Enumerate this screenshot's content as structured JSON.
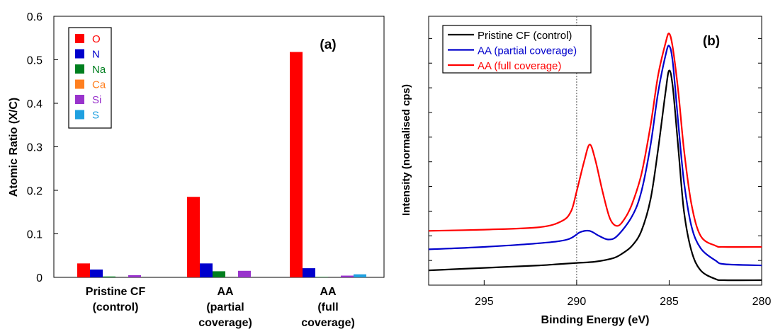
{
  "chart_data": [
    {
      "type": "bar",
      "panel_label": "(a)",
      "title": "",
      "xlabel": "",
      "ylabel": "Atomic Ratio (X/C)",
      "ylim": [
        0,
        0.6
      ],
      "yticks": [
        "0",
        "0.1",
        "0.2",
        "0.3",
        "0.4",
        "0.5",
        "0.6"
      ],
      "ytick_values": [
        0,
        0.1,
        0.2,
        0.3,
        0.4,
        0.5,
        0.6
      ],
      "grid": false,
      "legend_position": "top-left",
      "categories": [
        [
          "Pristine CF",
          "(control)"
        ],
        [
          "AA",
          "(partial",
          "coverage)"
        ],
        [
          "AA",
          "(full",
          "coverage)"
        ]
      ],
      "series": [
        {
          "name": "O",
          "color": "#ff0000",
          "values": [
            0.032,
            0.185,
            0.518
          ]
        },
        {
          "name": "N",
          "color": "#0000cc",
          "values": [
            0.018,
            0.032,
            0.021
          ]
        },
        {
          "name": "Na",
          "color": "#007f1f",
          "values": [
            0.002,
            0.014,
            0.001
          ]
        },
        {
          "name": "Ca",
          "color": "#ff7f1f",
          "values": [
            0.0,
            0.0,
            0.0
          ]
        },
        {
          "name": "Si",
          "color": "#9933cc",
          "values": [
            0.005,
            0.015,
            0.004
          ]
        },
        {
          "name": "S",
          "color": "#1fa0e0",
          "values": [
            0.0,
            0.0,
            0.007
          ]
        }
      ]
    },
    {
      "type": "line",
      "panel_label": "(b)",
      "title": "",
      "xlabel": "Binding Energy (eV)",
      "ylabel": "Intensity (normalised cps)",
      "xlim": [
        298,
        280
      ],
      "x_reversed": true,
      "xticks": [
        "295",
        "290",
        "285",
        "280"
      ],
      "xtick_values": [
        295,
        290,
        285,
        280
      ],
      "ylim": [
        0,
        1.09
      ],
      "ytick_values": [
        0.1,
        0.2,
        0.3,
        0.4,
        0.5,
        0.6,
        0.7,
        0.8,
        0.9,
        1.0
      ],
      "reference_line_x": 290,
      "grid": false,
      "legend_position": "top-left",
      "series": [
        {
          "name": "Pristine CF (control)",
          "color": "#000000",
          "x": [
            298,
            295,
            292,
            291,
            290,
            289,
            288,
            287.5,
            287,
            286.5,
            286,
            285.6,
            285.2,
            285.0,
            284.8,
            284.5,
            284.2,
            283.8,
            283.3,
            282.5,
            282,
            280
          ],
          "y": [
            0.06,
            0.07,
            0.08,
            0.085,
            0.09,
            0.095,
            0.11,
            0.13,
            0.16,
            0.22,
            0.35,
            0.55,
            0.78,
            0.87,
            0.8,
            0.55,
            0.3,
            0.14,
            0.06,
            0.025,
            0.02,
            0.02
          ]
        },
        {
          "name": "AA (partial coverage)",
          "color": "#0000cc",
          "x": [
            298,
            295,
            292,
            290.5,
            289.8,
            289.3,
            288.8,
            288.3,
            287.8,
            287,
            286.5,
            286,
            285.6,
            285.2,
            285.0,
            284.8,
            284.5,
            284.2,
            283.8,
            283.3,
            282.5,
            282,
            280
          ],
          "y": [
            0.145,
            0.155,
            0.17,
            0.185,
            0.215,
            0.22,
            0.2,
            0.185,
            0.2,
            0.28,
            0.38,
            0.57,
            0.78,
            0.93,
            0.97,
            0.9,
            0.65,
            0.42,
            0.24,
            0.15,
            0.1,
            0.085,
            0.08
          ]
        },
        {
          "name": "AA (full coverage)",
          "color": "#ff0000",
          "x": [
            298,
            295,
            292,
            290.8,
            290.3,
            290,
            289.6,
            289.3,
            289.0,
            288.6,
            288.2,
            287.8,
            287.4,
            287,
            286.5,
            286,
            285.6,
            285.2,
            285.0,
            284.8,
            284.5,
            284.2,
            283.8,
            283.3,
            282.5,
            282,
            280
          ],
          "y": [
            0.22,
            0.225,
            0.235,
            0.26,
            0.3,
            0.38,
            0.5,
            0.57,
            0.51,
            0.38,
            0.27,
            0.24,
            0.27,
            0.33,
            0.45,
            0.65,
            0.85,
            0.98,
            1.02,
            0.96,
            0.78,
            0.55,
            0.33,
            0.2,
            0.16,
            0.155,
            0.155
          ]
        }
      ]
    }
  ]
}
